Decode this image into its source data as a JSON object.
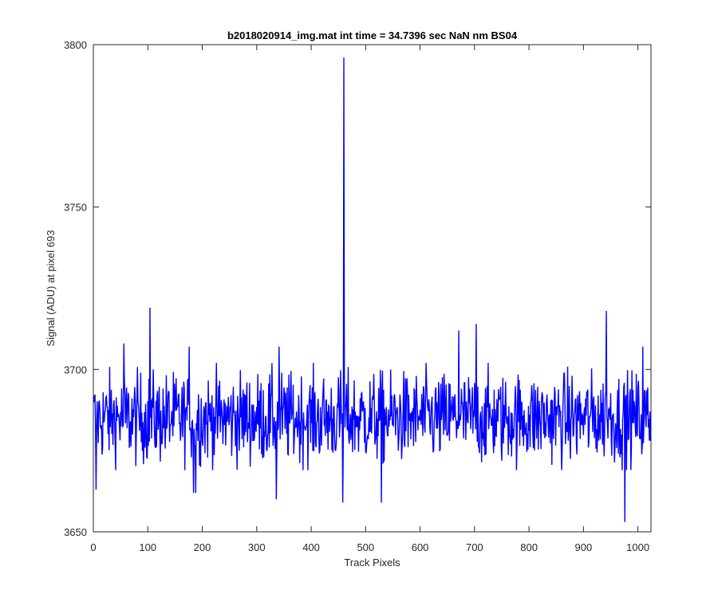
{
  "chart_data": {
    "type": "line",
    "title": "b2018020914_img.mat int time = 34.7396 sec  NaN nm BS04",
    "xlabel": "Track Pixels",
    "ylabel": "Signal (ADU) at pixel 693",
    "xlim": [
      0,
      1024
    ],
    "ylim": [
      3650,
      3800
    ],
    "x_ticks": [
      0,
      100,
      200,
      300,
      400,
      500,
      600,
      700,
      800,
      900,
      1000
    ],
    "y_ticks": [
      3650,
      3700,
      3750,
      3800
    ],
    "grid": false,
    "legend": "none",
    "series": [
      {
        "color": "#0000ff",
        "baseline": 3685,
        "noise_amplitude": 11,
        "x_start": 1,
        "x_end": 1024,
        "notable_points": [
          {
            "x": 5,
            "y": 3663
          },
          {
            "x": 56,
            "y": 3708
          },
          {
            "x": 104,
            "y": 3719
          },
          {
            "x": 176,
            "y": 3707
          },
          {
            "x": 184,
            "y": 3662
          },
          {
            "x": 188,
            "y": 3662
          },
          {
            "x": 336,
            "y": 3660
          },
          {
            "x": 341,
            "y": 3707
          },
          {
            "x": 458,
            "y": 3659
          },
          {
            "x": 460,
            "y": 3796
          },
          {
            "x": 529,
            "y": 3659
          },
          {
            "x": 671,
            "y": 3712
          },
          {
            "x": 703,
            "y": 3714
          },
          {
            "x": 942,
            "y": 3718
          },
          {
            "x": 976,
            "y": 3653
          },
          {
            "x": 1009,
            "y": 3707
          }
        ]
      }
    ]
  }
}
